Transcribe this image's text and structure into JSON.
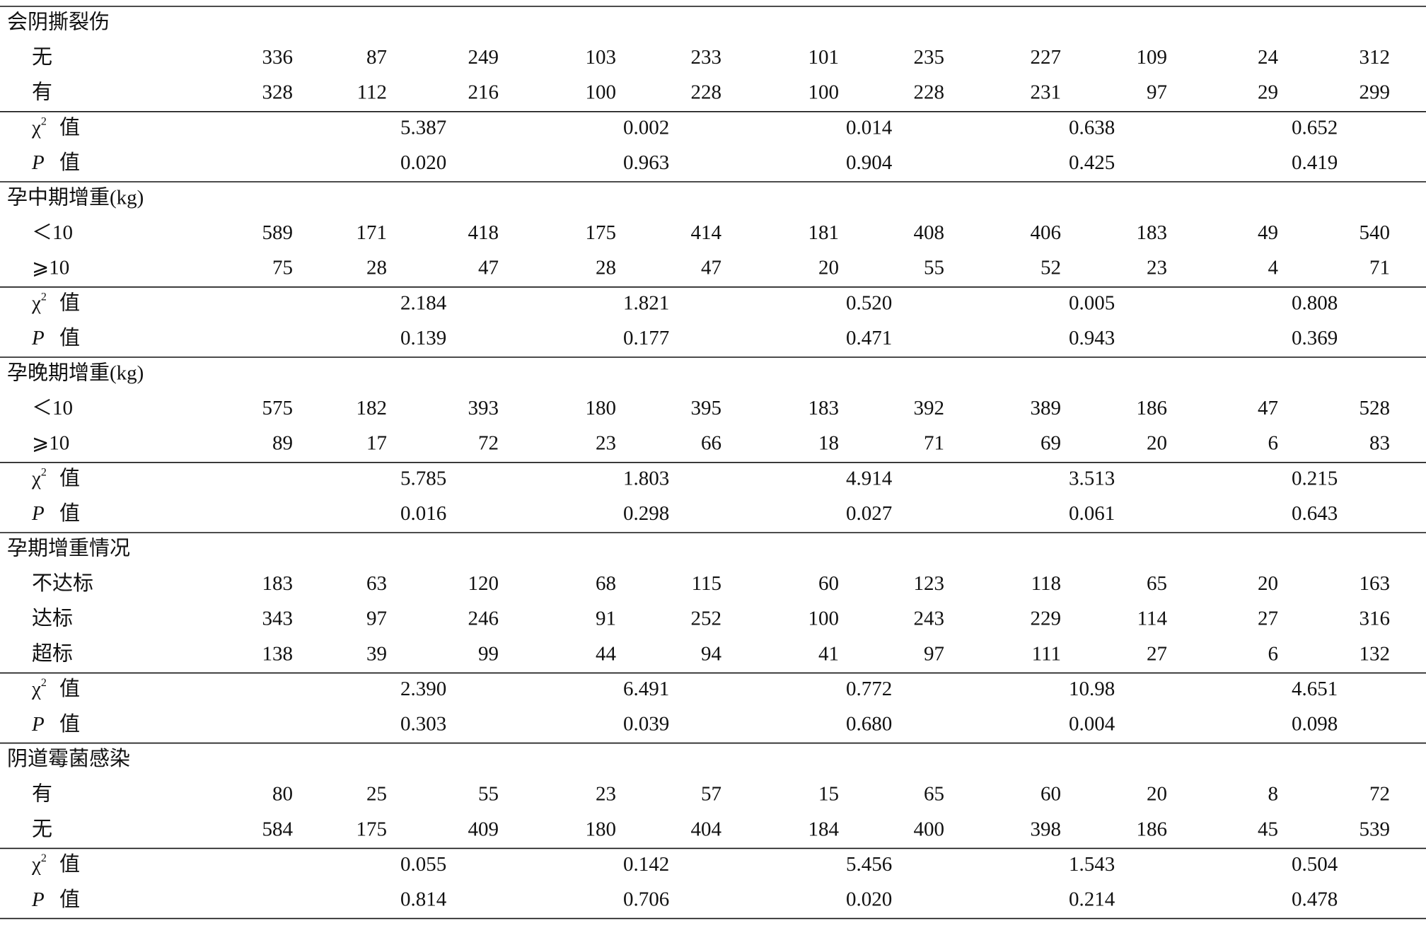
{
  "table": {
    "sections": [
      {
        "title": "会阴撕裂伤",
        "rows": [
          {
            "label": "无",
            "values": [
              "336",
              "87",
              "249",
              "103",
              "233",
              "101",
              "235",
              "227",
              "109",
              "24",
              "312"
            ]
          },
          {
            "label": "有",
            "values": [
              "328",
              "112",
              "216",
              "100",
              "228",
              "100",
              "228",
              "231",
              "97",
              "29",
              "299"
            ]
          }
        ],
        "stats": [
          {
            "symbol": "χ",
            "sup": "2",
            "word": "值",
            "values": [
              "5.387",
              "0.002",
              "0.014",
              "0.638",
              "0.652"
            ]
          },
          {
            "symbol": "P",
            "word": "值",
            "values": [
              "0.020",
              "0.963",
              "0.904",
              "0.425",
              "0.419"
            ]
          }
        ]
      },
      {
        "title": "孕中期增重(kg)",
        "rows": [
          {
            "label": "＜10",
            "values": [
              "589",
              "171",
              "418",
              "175",
              "414",
              "181",
              "408",
              "406",
              "183",
              "49",
              "540"
            ]
          },
          {
            "label": "⩾10",
            "values": [
              "75",
              "28",
              "47",
              "28",
              "47",
              "20",
              "55",
              "52",
              "23",
              "4",
              "71"
            ]
          }
        ],
        "stats": [
          {
            "symbol": "χ",
            "sup": "2",
            "word": "值",
            "values": [
              "2.184",
              "1.821",
              "0.520",
              "0.005",
              "0.808"
            ]
          },
          {
            "symbol": "P",
            "word": "值",
            "values": [
              "0.139",
              "0.177",
              "0.471",
              "0.943",
              "0.369"
            ]
          }
        ]
      },
      {
        "title": "孕晚期增重(kg)",
        "rows": [
          {
            "label": "＜10",
            "values": [
              "575",
              "182",
              "393",
              "180",
              "395",
              "183",
              "392",
              "389",
              "186",
              "47",
              "528"
            ]
          },
          {
            "label": "⩾10",
            "values": [
              "89",
              "17",
              "72",
              "23",
              "66",
              "18",
              "71",
              "69",
              "20",
              "6",
              "83"
            ]
          }
        ],
        "stats": [
          {
            "symbol": "χ",
            "sup": "2",
            "word": "值",
            "values": [
              "5.785",
              "1.803",
              "4.914",
              "3.513",
              "0.215"
            ]
          },
          {
            "symbol": "P",
            "word": "值",
            "values": [
              "0.016",
              "0.298",
              "0.027",
              "0.061",
              "0.643"
            ]
          }
        ]
      },
      {
        "title": "孕期增重情况",
        "rows": [
          {
            "label": "不达标",
            "values": [
              "183",
              "63",
              "120",
              "68",
              "115",
              "60",
              "123",
              "118",
              "65",
              "20",
              "163"
            ]
          },
          {
            "label": "达标",
            "values": [
              "343",
              "97",
              "246",
              "91",
              "252",
              "100",
              "243",
              "229",
              "114",
              "27",
              "316"
            ]
          },
          {
            "label": "超标",
            "values": [
              "138",
              "39",
              "99",
              "44",
              "94",
              "41",
              "97",
              "111",
              "27",
              "6",
              "132"
            ]
          }
        ],
        "stats": [
          {
            "symbol": "χ",
            "sup": "2",
            "word": "值",
            "values": [
              "2.390",
              "6.491",
              "0.772",
              "10.98",
              "4.651"
            ]
          },
          {
            "symbol": "P",
            "word": "值",
            "values": [
              "0.303",
              "0.039",
              "0.680",
              "0.004",
              "0.098"
            ]
          }
        ]
      },
      {
        "title": "阴道霉菌感染",
        "rows": [
          {
            "label": "有",
            "values": [
              "80",
              "25",
              "55",
              "23",
              "57",
              "15",
              "65",
              "60",
              "20",
              "8",
              "72"
            ]
          },
          {
            "label": "无",
            "values": [
              "584",
              "175",
              "409",
              "180",
              "404",
              "184",
              "400",
              "398",
              "186",
              "45",
              "539"
            ]
          }
        ],
        "stats": [
          {
            "symbol": "χ",
            "sup": "2",
            "word": "值",
            "values": [
              "0.055",
              "0.142",
              "5.456",
              "1.543",
              "0.504"
            ]
          },
          {
            "symbol": "P",
            "word": "值",
            "values": [
              "0.814",
              "0.706",
              "0.020",
              "0.214",
              "0.478"
            ]
          }
        ]
      }
    ]
  }
}
